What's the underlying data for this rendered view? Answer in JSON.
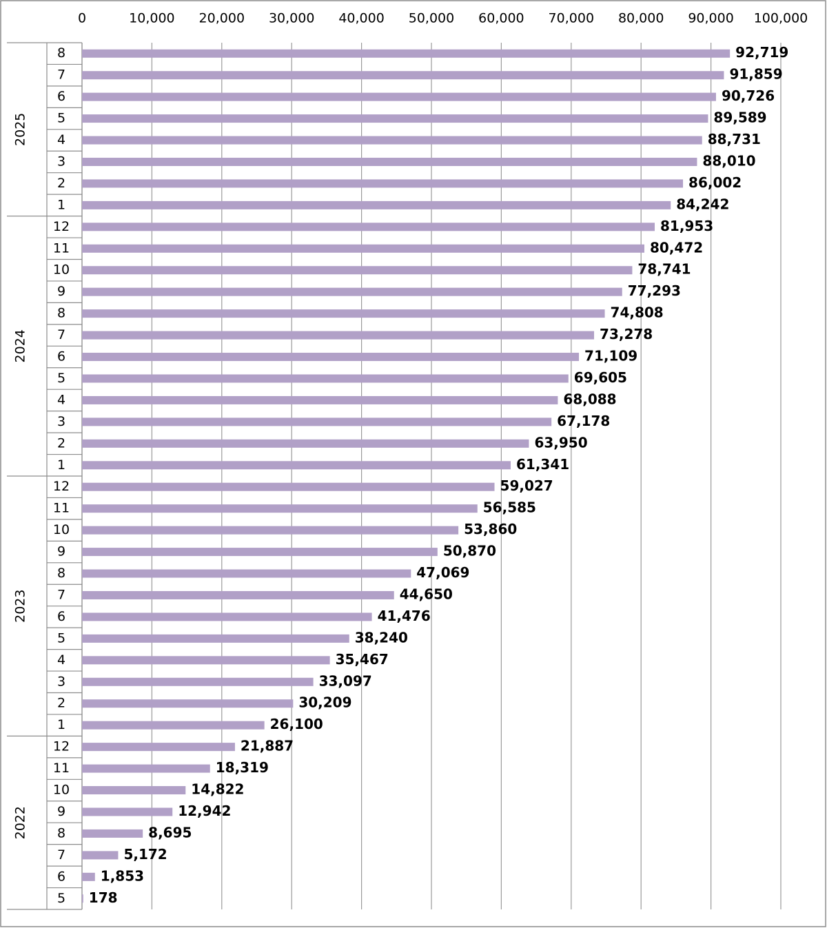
{
  "chart_data": {
    "type": "bar",
    "orientation": "horizontal",
    "color": "#b1a0c7",
    "grid": true,
    "xlim": [
      0,
      100000
    ],
    "xticks": [
      0,
      {
        "value": 10000,
        "label": "10,000"
      },
      {
        "value": 20000,
        "label": "20,000"
      },
      {
        "value": 30000,
        "label": "30,000"
      },
      {
        "value": 40000,
        "label": "40,000"
      },
      {
        "value": 50000,
        "label": "50,000"
      },
      {
        "value": 60000,
        "label": "60,000"
      },
      {
        "value": 70000,
        "label": "70,000"
      },
      {
        "value": 80000,
        "label": "80,000"
      },
      {
        "value": 90000,
        "label": "90,000"
      },
      {
        "value": 100000,
        "label": "100,000"
      }
    ],
    "groups": [
      {
        "name": "2025",
        "categories": [
          "8",
          "7",
          "6",
          "5",
          "4",
          "3",
          "2",
          "1"
        ],
        "values": [
          92719,
          91859,
          90726,
          89589,
          88731,
          88010,
          86002,
          84242
        ],
        "value_labels": [
          "92,719",
          "91,859",
          "90,726",
          "89,589",
          "88,731",
          "88,010",
          "86,002",
          "84,242"
        ]
      },
      {
        "name": "2024",
        "categories": [
          "12",
          "11",
          "10",
          "9",
          "8",
          "7",
          "6",
          "5",
          "4",
          "3",
          "2",
          "1"
        ],
        "values": [
          81953,
          80472,
          78741,
          77293,
          74808,
          73278,
          71109,
          69605,
          68088,
          67178,
          63950,
          61341
        ],
        "value_labels": [
          "81,953",
          "80,472",
          "78,741",
          "77,293",
          "74,808",
          "73,278",
          "71,109",
          "69,605",
          "68,088",
          "67,178",
          "63,950",
          "61,341"
        ]
      },
      {
        "name": "2023",
        "categories": [
          "12",
          "11",
          "10",
          "9",
          "8",
          "7",
          "6",
          "5",
          "4",
          "3",
          "2",
          "1"
        ],
        "values": [
          59027,
          56585,
          53860,
          50870,
          47069,
          44650,
          41476,
          38240,
          35467,
          33097,
          30209,
          26100
        ],
        "value_labels": [
          "59,027",
          "56,585",
          "53,860",
          "50,870",
          "47,069",
          "44,650",
          "41,476",
          "38,240",
          "35,467",
          "33,097",
          "30,209",
          "26,100"
        ]
      },
      {
        "name": "2022",
        "categories": [
          "12",
          "11",
          "10",
          "9",
          "8",
          "7",
          "6",
          "5"
        ],
        "values": [
          21887,
          18319,
          14822,
          12942,
          8695,
          5172,
          1853,
          178
        ],
        "value_labels": [
          "21,887",
          "18,319",
          "14,822",
          "12,942",
          "8,695",
          "5,172",
          "1,853",
          "178"
        ]
      }
    ]
  }
}
